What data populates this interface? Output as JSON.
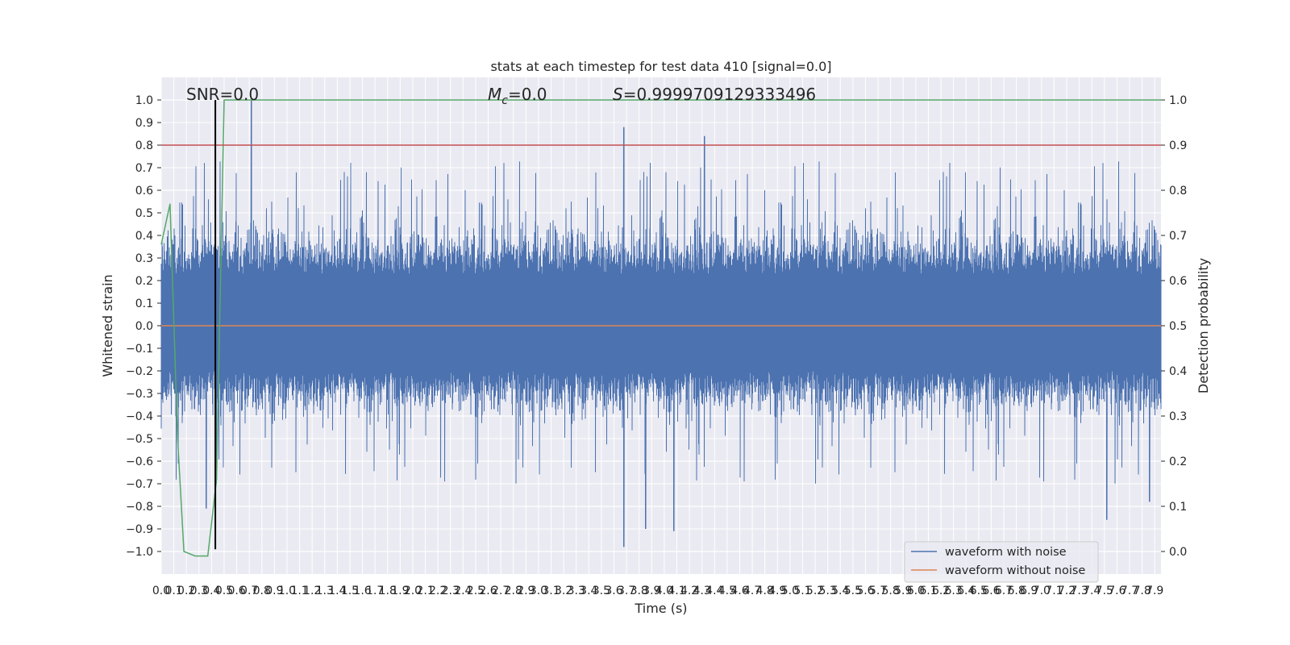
{
  "chart_data": {
    "type": "line",
    "title": "stats at each timestep for test data 410 [signal=0.0]",
    "xlabel": "Time (s)",
    "ylabel": "Whitened strain",
    "y2label": "Detection probability",
    "xlim": [
      0.0,
      7.95
    ],
    "ylim": [
      -1.1,
      1.1
    ],
    "y2lim": [
      -0.05,
      1.05
    ],
    "x_ticks": [
      0.0,
      0.1,
      0.2,
      0.3,
      0.4,
      0.5,
      0.6,
      0.7,
      0.8,
      0.9,
      1.0,
      1.1,
      1.2,
      1.3,
      1.4,
      1.5,
      1.6,
      1.7,
      1.8,
      1.9,
      2.0,
      2.1,
      2.2,
      2.3,
      2.4,
      2.5,
      2.6,
      2.7,
      2.8,
      2.9,
      3.0,
      3.1,
      3.2,
      3.3,
      3.4,
      3.5,
      3.6,
      3.7,
      3.8,
      3.9,
      4.0,
      4.1,
      4.2,
      4.3,
      4.4,
      4.5,
      4.6,
      4.7,
      4.8,
      4.9,
      5.0,
      5.1,
      5.2,
      5.3,
      5.4,
      5.5,
      5.6,
      5.7,
      5.8,
      5.9,
      6.0,
      6.1,
      6.2,
      6.3,
      6.4,
      6.5,
      6.6,
      6.7,
      6.8,
      6.9,
      7.0,
      7.1,
      7.2,
      7.3,
      7.4,
      7.5,
      7.6,
      7.7,
      7.8,
      7.9
    ],
    "y_ticks": [
      -1.0,
      -0.9,
      -0.8,
      -0.7,
      -0.6,
      -0.5,
      -0.4,
      -0.3,
      -0.2,
      -0.1,
      0.0,
      0.1,
      0.2,
      0.3,
      0.4,
      0.5,
      0.6,
      0.7,
      0.8,
      0.9,
      1.0
    ],
    "y2_ticks": [
      0.0,
      0.1,
      0.2,
      0.3,
      0.4,
      0.5,
      0.6,
      0.7,
      0.8,
      0.9,
      1.0
    ],
    "annotations": {
      "snr": "SNR=0.0",
      "mc": "=0.0",
      "mc_symbol": "M",
      "mc_subscript": "c",
      "s": "=0.9999709129333496",
      "s_symbol": "S"
    },
    "legend": {
      "placement": "lower-right"
    },
    "series": [
      {
        "name": "waveform with noise",
        "color": "#4c72b0",
        "axis": "left",
        "sampling": "dense noise between about -0.45 and 0.6, peaks to 1.0 and -0.98",
        "spikes": [
          {
            "x": 0.72,
            "y": 1.0
          },
          {
            "x": 3.68,
            "y": 0.88
          },
          {
            "x": 4.32,
            "y": 0.84
          },
          {
            "x": 3.68,
            "y": -0.98
          },
          {
            "x": 4.08,
            "y": -0.91
          },
          {
            "x": 3.85,
            "y": -0.9
          },
          {
            "x": 7.52,
            "y": -0.86
          },
          {
            "x": 0.36,
            "y": -0.81
          },
          {
            "x": 7.86,
            "y": -0.78
          }
        ]
      },
      {
        "name": "waveform without noise",
        "color": "#dd8452",
        "axis": "left",
        "x": [
          0.0,
          7.95
        ],
        "y": [
          0.0,
          0.0
        ]
      },
      {
        "color": "#55a868",
        "axis": "right",
        "x": [
          0.0,
          0.07,
          0.13,
          0.18,
          0.27,
          0.37,
          0.44,
          0.5,
          7.95
        ],
        "y": [
          0.68,
          0.77,
          0.25,
          0.0,
          -0.01,
          -0.01,
          0.16,
          1.0,
          1.0
        ]
      },
      {
        "color": "#c44e52",
        "axis": "left",
        "x": [
          0.0,
          7.95
        ],
        "y": [
          0.8,
          0.8
        ]
      },
      {
        "color": "#000000",
        "axis": "left",
        "x": [
          0.43,
          0.43
        ],
        "y": [
          -0.99,
          1.0
        ]
      }
    ]
  }
}
